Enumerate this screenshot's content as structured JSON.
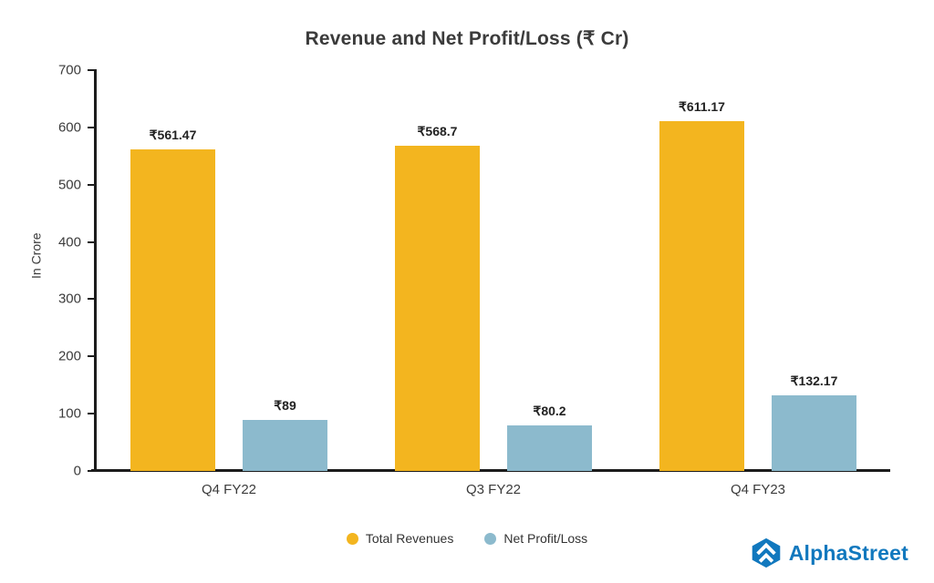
{
  "chart_data": {
    "type": "bar",
    "title": "Revenue and Net Profit/Loss (₹ Cr)",
    "ylabel": "In Crore",
    "xlabel": "",
    "categories": [
      "Q4 FY22",
      "Q3 FY22",
      "Q4 FY23"
    ],
    "series": [
      {
        "name": "Total Revenues",
        "color": "#F3B51F",
        "values": [
          561.47,
          568.7,
          611.17
        ],
        "value_labels": [
          "₹561.47",
          "₹568.7",
          "₹611.17"
        ]
      },
      {
        "name": "Net Profit/Loss",
        "color": "#8CBACD",
        "values": [
          89,
          80.2,
          132.17
        ],
        "value_labels": [
          "₹89",
          "₹80.2",
          "₹132.17"
        ]
      }
    ],
    "ylim": [
      0,
      700
    ],
    "yticks": [
      0,
      100,
      200,
      300,
      400,
      500,
      600,
      700
    ],
    "grid": false,
    "legend_position": "bottom"
  },
  "legend": {
    "items": [
      {
        "label": "Total Revenues",
        "color": "#F3B51F"
      },
      {
        "label": "Net Profit/Loss",
        "color": "#8CBACD"
      }
    ]
  },
  "branding": {
    "name": "AlphaStreet",
    "color": "#1178BE"
  }
}
